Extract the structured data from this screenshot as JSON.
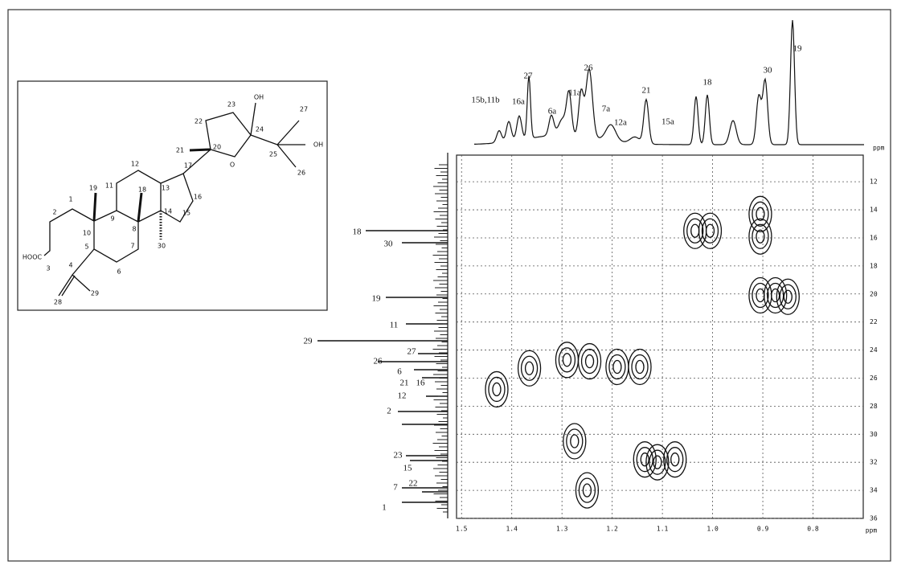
{
  "structure": {
    "atoms": [
      "19",
      "11",
      "12",
      "13",
      "17",
      "20",
      "21",
      "22",
      "23",
      "24",
      "OH",
      "25",
      "27",
      "OH",
      "26",
      "O",
      "1",
      "2",
      "10",
      "9",
      "18",
      "8",
      "14",
      "16",
      "15",
      "HOOC",
      "3",
      "4",
      "5",
      "7",
      "6",
      "30",
      "28",
      "29"
    ]
  },
  "proton_labels": [
    "15b,11b",
    "16a",
    "27",
    "6a",
    "11a",
    "26",
    "7a",
    "12a",
    "21",
    "15a",
    "18",
    "30",
    "19"
  ],
  "carbon_labels": [
    "18",
    "30",
    "19",
    "11",
    "29",
    "27",
    "26",
    "6",
    "21",
    "16",
    "12",
    "2",
    "23",
    "15",
    "7",
    "22",
    "1"
  ],
  "spectrum": {
    "x_axis": {
      "lim": [
        1.51,
        0.7
      ],
      "unit": "ppm",
      "ticks": [
        1.5,
        1.4,
        1.3,
        1.2,
        1.1,
        {
          "value": 1,
          "label": "1.0"
        },
        0.9,
        0.8
      ]
    },
    "y_axis": {
      "lim": [
        10.1,
        36
      ],
      "ticks": [
        12,
        14,
        16,
        18,
        20,
        22,
        24,
        26,
        28,
        30,
        32,
        34,
        36
      ]
    },
    "cross_peaks": [
      {
        "x": 1.035,
        "y": 15.5
      },
      {
        "x": 1.005,
        "y": 15.5
      },
      {
        "x": 0.905,
        "y": 15.9
      },
      {
        "x": 0.905,
        "y": 14.3
      },
      {
        "x": 0.905,
        "y": 20.1
      },
      {
        "x": 0.875,
        "y": 20.1
      },
      {
        "x": 0.85,
        "y": 20.2
      },
      {
        "x": 1.29,
        "y": 24.7
      },
      {
        "x": 1.245,
        "y": 24.8
      },
      {
        "x": 1.19,
        "y": 25.2
      },
      {
        "x": 1.145,
        "y": 25.2
      },
      {
        "x": 1.365,
        "y": 25.3
      },
      {
        "x": 1.43,
        "y": 26.8
      },
      {
        "x": 1.275,
        "y": 30.5
      },
      {
        "x": 1.25,
        "y": 34
      },
      {
        "x": 1.135,
        "y": 31.8
      },
      {
        "x": 1.11,
        "y": 32
      },
      {
        "x": 1.075,
        "y": 31.8
      }
    ]
  }
}
